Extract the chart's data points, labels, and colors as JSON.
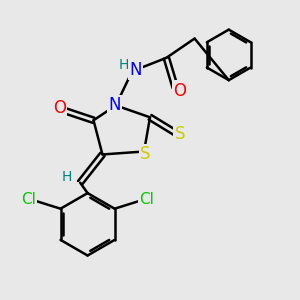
{
  "background_color": "#e8e8e8",
  "bond_color": "#000000",
  "bond_width": 1.8,
  "atom_colors": {
    "N": "#0000ff",
    "O": "#ff0000",
    "S": "#cccc00",
    "Cl": "#00cc00",
    "H_label": "#008080",
    "C": "#000000"
  },
  "font_size_atom": 12,
  "font_size_h": 10,
  "font_size_cl": 11
}
